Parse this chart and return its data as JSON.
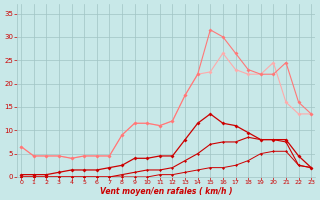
{
  "x": [
    0,
    1,
    2,
    3,
    4,
    5,
    6,
    7,
    8,
    9,
    10,
    11,
    12,
    13,
    14,
    15,
    16,
    17,
    18,
    19,
    20,
    21,
    22,
    23
  ],
  "line1": [
    6.5,
    4.5,
    4.5,
    4.5,
    4.0,
    4.5,
    4.5,
    4.5,
    9.0,
    11.5,
    11.5,
    11.0,
    12.0,
    17.5,
    22.0,
    22.5,
    26.5,
    23.0,
    22.0,
    22.0,
    24.5,
    16.0,
    13.5,
    13.5
  ],
  "line2": [
    6.5,
    4.5,
    4.5,
    4.5,
    4.0,
    4.5,
    4.5,
    4.5,
    9.0,
    11.5,
    11.5,
    11.0,
    12.0,
    17.5,
    22.0,
    31.5,
    30.0,
    26.5,
    23.0,
    22.0,
    22.0,
    24.5,
    16.0,
    13.5
  ],
  "line3": [
    0.5,
    0.5,
    0.5,
    1.0,
    1.5,
    1.5,
    1.5,
    2.0,
    2.5,
    4.0,
    4.0,
    4.5,
    4.5,
    8.0,
    11.5,
    13.5,
    11.5,
    11.0,
    9.5,
    8.0,
    8.0,
    8.0,
    4.5,
    2.0
  ],
  "line4": [
    0.0,
    0.0,
    0.0,
    0.0,
    0.0,
    0.0,
    0.0,
    0.0,
    0.5,
    1.0,
    1.5,
    1.5,
    2.0,
    3.5,
    5.0,
    7.0,
    7.5,
    7.5,
    8.5,
    8.0,
    8.0,
    7.5,
    2.5,
    2.0
  ],
  "line5": [
    0.0,
    0.0,
    0.0,
    0.0,
    0.0,
    0.0,
    0.0,
    0.0,
    0.0,
    0.0,
    0.0,
    0.5,
    0.5,
    1.0,
    1.5,
    2.0,
    2.0,
    2.5,
    3.5,
    5.0,
    5.5,
    5.5,
    2.5,
    2.0
  ],
  "colors": {
    "line1": "#ffaaaa",
    "line2": "#ff7777",
    "line3": "#cc0000",
    "line4": "#cc0000",
    "line5": "#cc0000"
  },
  "bg_color": "#c8e8e8",
  "grid_color": "#a0c4c4",
  "text_color": "#cc0000",
  "xlabel": "Vent moyen/en rafales ( km/h )",
  "ylim": [
    0,
    37
  ],
  "xlim": [
    -0.3,
    23.3
  ],
  "yticks": [
    0,
    5,
    10,
    15,
    20,
    25,
    30,
    35
  ],
  "xticks": [
    0,
    1,
    2,
    3,
    4,
    5,
    6,
    7,
    8,
    9,
    10,
    11,
    12,
    13,
    14,
    15,
    16,
    17,
    18,
    19,
    20,
    21,
    22,
    23
  ]
}
